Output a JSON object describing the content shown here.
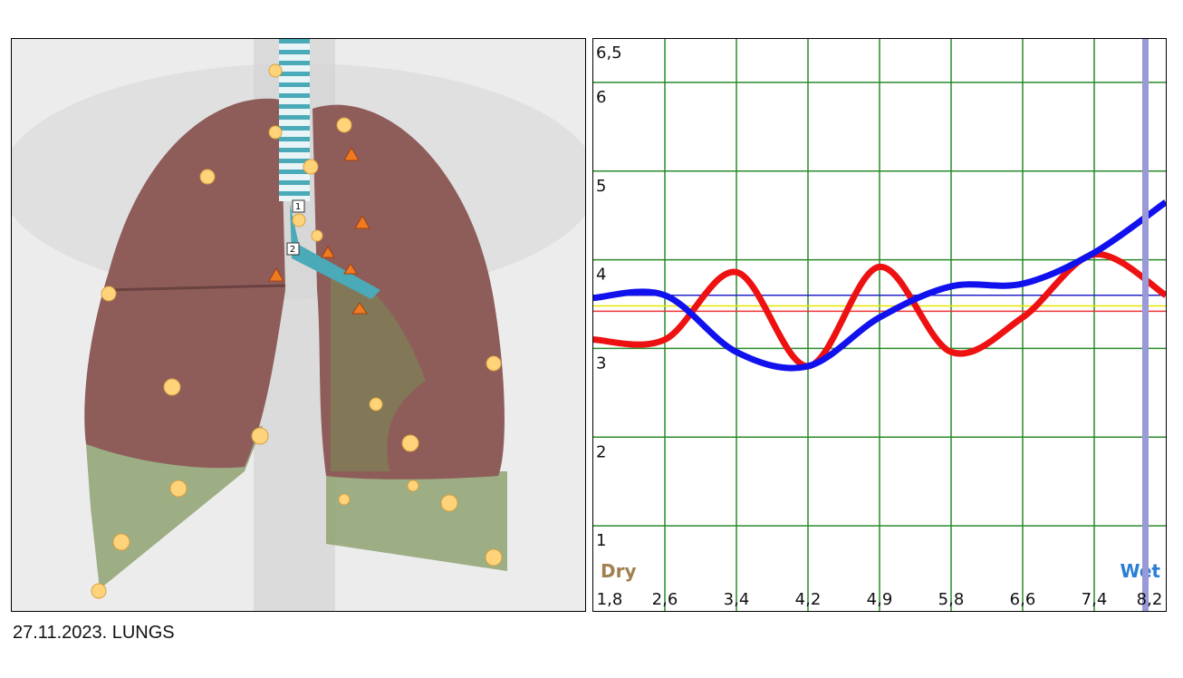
{
  "chart_data": {
    "type": "line",
    "categories": [
      "1,8",
      "2,6",
      "3,4",
      "4,2",
      "4,9",
      "5,8",
      "6,6",
      "7,4",
      "8,2"
    ],
    "series": [
      {
        "color": "#ee1111",
        "values": [
          3.1,
          3.1,
          3.86,
          2.8,
          3.92,
          2.96,
          3.35,
          4.06,
          3.6
        ]
      },
      {
        "color": "#1111ee",
        "values": [
          3.57,
          3.6,
          2.96,
          2.8,
          3.35,
          3.7,
          3.73,
          4.08,
          4.65
        ]
      }
    ],
    "hlines": [
      {
        "value": 3.6,
        "color": "#2222cc"
      },
      {
        "value": 3.48,
        "color": "#e6e600"
      },
      {
        "value": 3.42,
        "color": "#ee3333"
      }
    ],
    "ylim": [
      0.03,
      6.5
    ],
    "yticks": [
      1,
      2,
      3,
      4,
      5,
      6,
      {
        "value": 6.5,
        "label": "6,5"
      }
    ],
    "grid": true,
    "grid_color": "#2a8a2a",
    "annotations": [
      "Dry",
      "Wet"
    ]
  },
  "caption": "27.11.2023. LUNGS"
}
